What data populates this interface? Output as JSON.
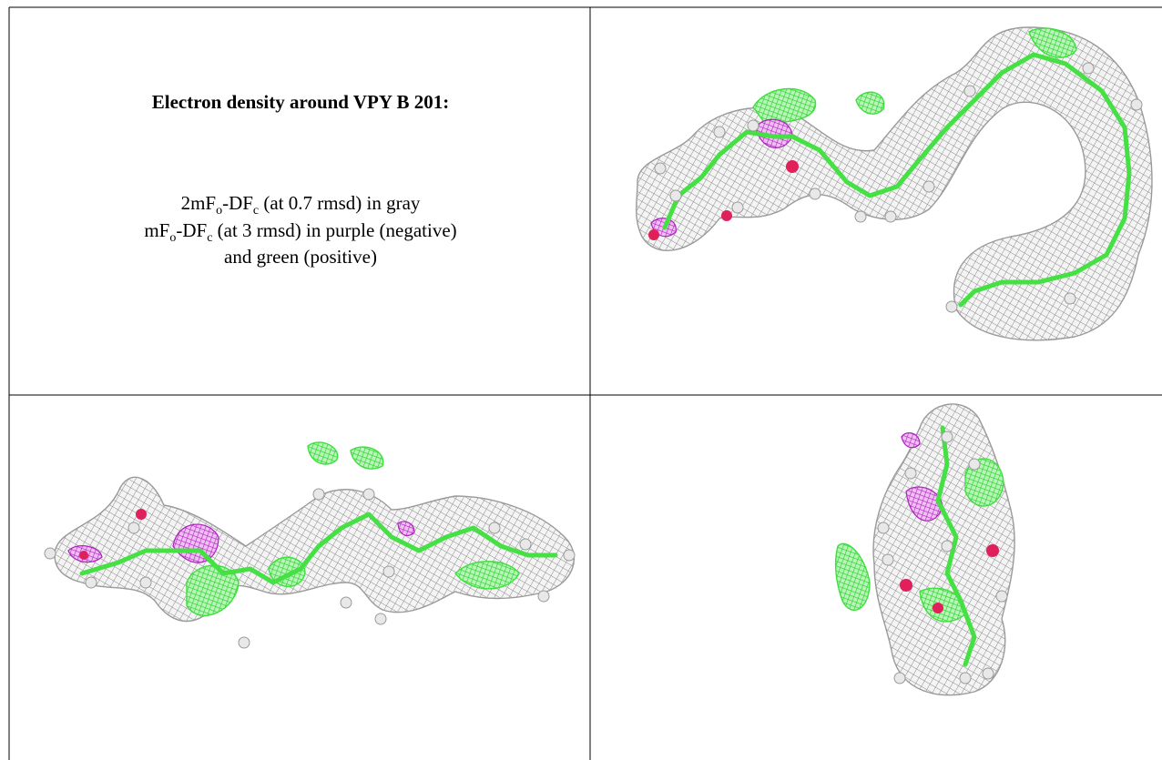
{
  "header": {
    "title": "Electron density around VPY B 201:"
  },
  "caption": {
    "line1": [
      "2mF",
      "o",
      "-DF",
      "c",
      " (at 0.7 rmsd) in gray"
    ],
    "line2": [
      "mF",
      "o",
      "-DF",
      "c",
      " (at 3 rmsd) in purple (negative)"
    ],
    "line3": "and green (positive)"
  }
}
